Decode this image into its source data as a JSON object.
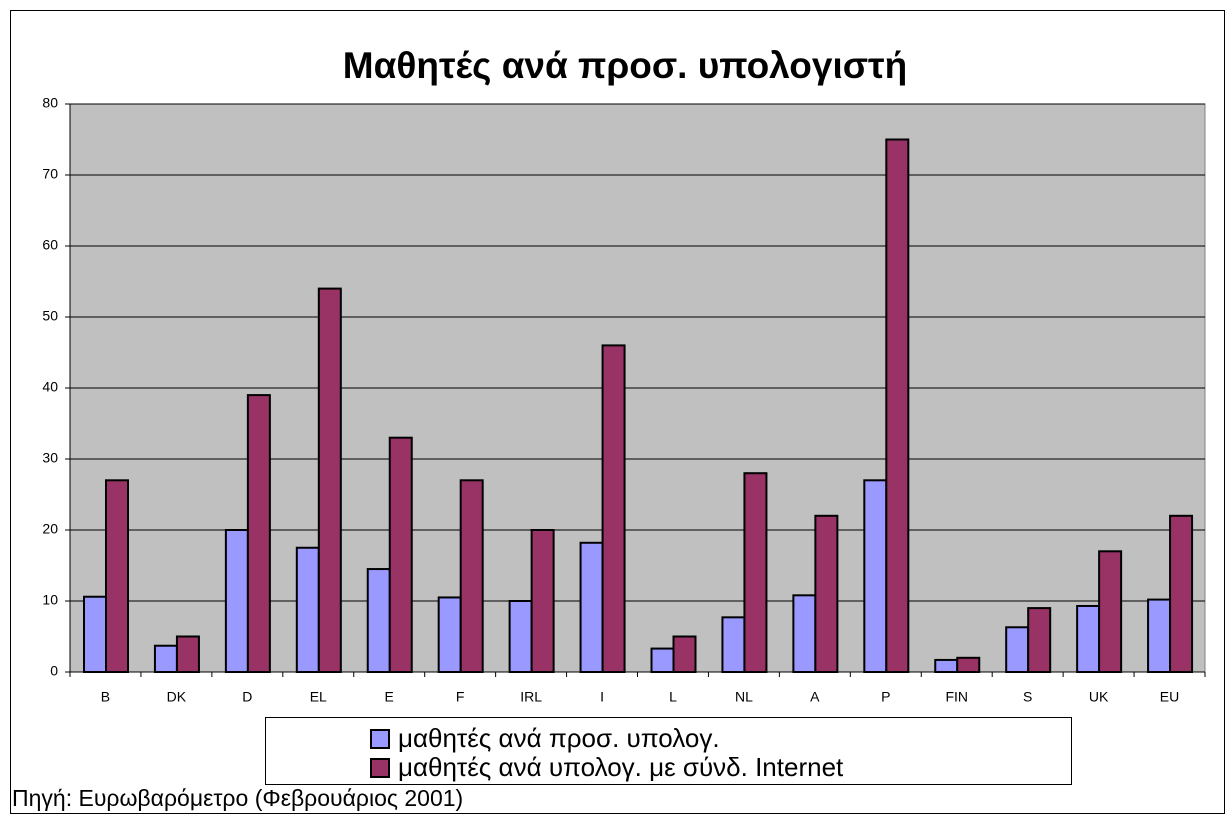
{
  "chart_data": {
    "type": "bar",
    "title": "Μαθητές ανά προσ. υπολογιστή",
    "categories": [
      "B",
      "DK",
      "D",
      "EL",
      "E",
      "F",
      "IRL",
      "I",
      "L",
      "NL",
      "A",
      "P",
      "FIN",
      "S",
      "UK",
      "EU"
    ],
    "series": [
      {
        "name": "μαθητές ανά προσ. υπολογ.",
        "color": "#9999ff",
        "values": [
          10.6,
          3.7,
          20,
          17.5,
          14.5,
          10.5,
          10,
          18.2,
          3.3,
          7.7,
          10.8,
          27,
          1.7,
          6.3,
          9.3,
          10.2
        ]
      },
      {
        "name": "μαθητές ανά υπολογ. με σύνδ. Internet",
        "color": "#993366",
        "values": [
          27,
          5,
          39,
          54,
          33,
          27,
          20,
          46,
          5,
          28,
          22,
          75,
          2,
          9,
          17,
          22
        ]
      }
    ],
    "ylim": [
      0,
      80
    ],
    "yticks": [
      0,
      10,
      20,
      30,
      40,
      50,
      60,
      70,
      80
    ],
    "grid": true,
    "plot_background": "#c0c0c0",
    "source": "Πηγή: Ευρωβαρόμετρο  (Φεβρουάριος 2001)"
  }
}
